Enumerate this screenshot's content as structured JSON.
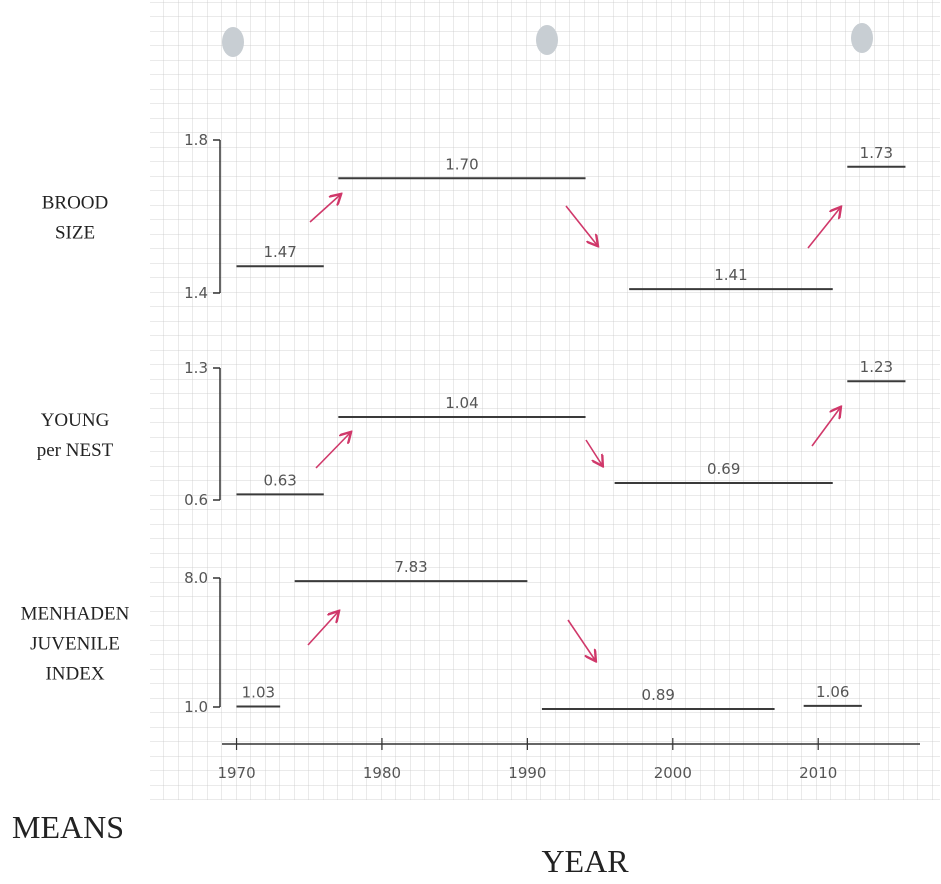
{
  "chart_data": [
    {
      "type": "segment",
      "ylabel": [
        "BROOD",
        "SIZE"
      ],
      "ylim": [
        1.4,
        1.8
      ],
      "yticks": [
        1.4,
        1.8
      ],
      "xlim": [
        1969,
        2017
      ],
      "x_start": [
        1970,
        1977,
        1997,
        2012
      ],
      "x_end": [
        1976,
        1994,
        2011,
        2016
      ],
      "values": [
        1.47,
        1.7,
        1.41,
        1.73
      ],
      "value_labels": [
        "1.47",
        "1.70",
        "1.41",
        "1.73"
      ],
      "color": "#3a3a3a"
    },
    {
      "type": "segment",
      "ylabel": [
        "YOUNG",
        "per NEST"
      ],
      "ylim": [
        0.6,
        1.3
      ],
      "yticks": [
        0.6,
        1.3
      ],
      "xlim": [
        1969,
        2017
      ],
      "x_start": [
        1970,
        1977,
        1996,
        2012
      ],
      "x_end": [
        1976,
        1994,
        2011,
        2016
      ],
      "values": [
        0.63,
        1.04,
        0.69,
        1.23
      ],
      "value_labels": [
        "0.63",
        "1.04",
        "0.69",
        "1.23"
      ],
      "color": "#3a3a3a"
    },
    {
      "type": "segment",
      "ylabel": [
        "MENHADEN",
        "JUVENILE",
        "INDEX"
      ],
      "ylim": [
        1,
        8
      ],
      "yticks": [
        {
          "value": 1,
          "label": "1.0"
        },
        {
          "value": 8,
          "label": "8.0"
        }
      ],
      "xlim": [
        1969,
        2017
      ],
      "x_start": [
        1970,
        1974,
        1991,
        2009
      ],
      "x_end": [
        1973,
        1990,
        2007,
        2013
      ],
      "values": [
        1.03,
        7.83,
        0.89,
        1.06
      ],
      "value_labels": [
        "1.03",
        "7.83",
        "0.89",
        "1.06"
      ],
      "color": "#3a3a3a",
      "xticks": [
        1970,
        1980,
        1990,
        2000,
        2010
      ],
      "xlabel": "YEAR",
      "annotation": "MEANS"
    }
  ]
}
